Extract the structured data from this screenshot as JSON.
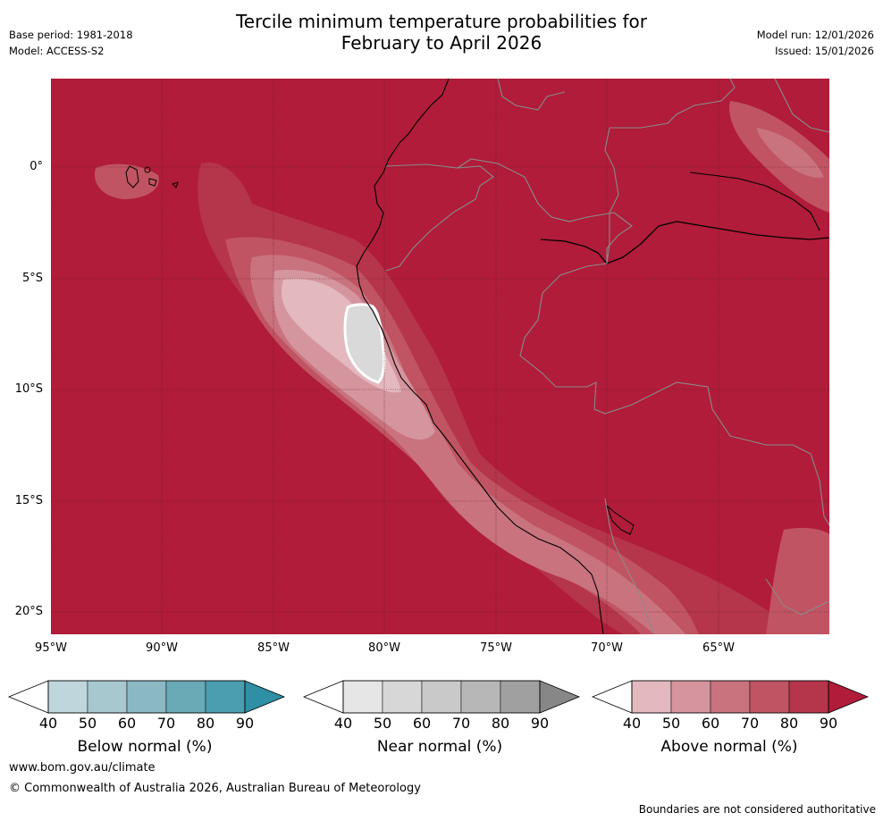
{
  "title": {
    "line1": "Tercile minimum temperature probabilities for",
    "line2": "February to April 2026"
  },
  "meta": {
    "base_period": "Base period: 1981-2018",
    "model": "Model: ACCESS-S2",
    "model_run": "Model run: 12/01/2026",
    "issued": "Issued: 15/01/2026"
  },
  "map": {
    "lat_labels": [
      "0°",
      "5°S",
      "10°S",
      "15°S",
      "20°S"
    ],
    "lon_labels": [
      "95°W",
      "90°W",
      "85°W",
      "80°W",
      "75°W",
      "70°W",
      "65°W"
    ]
  },
  "legends": [
    {
      "label": "Below normal (%)",
      "ticks": [
        "40",
        "50",
        "60",
        "70",
        "80",
        "90"
      ],
      "colors": [
        "#bfd6dc",
        "#a8c8cf",
        "#8ab8c3",
        "#6aa9b6",
        "#4a9eb0",
        "#2e8fa5"
      ]
    },
    {
      "label": "Near normal (%)",
      "ticks": [
        "40",
        "50",
        "60",
        "70",
        "80",
        "90"
      ],
      "colors": [
        "#e6e6e6",
        "#d7d7d7",
        "#c9c9c9",
        "#b7b7b7",
        "#a0a0a0",
        "#878787"
      ]
    },
    {
      "label": "Above normal (%)",
      "ticks": [
        "40",
        "50",
        "60",
        "70",
        "80",
        "90"
      ],
      "colors": [
        "#e3b8bf",
        "#d5959f",
        "#c9737f",
        "#c05463",
        "#b5354a",
        "#b01c3a"
      ]
    }
  ],
  "footer": {
    "url": "www.bom.gov.au/climate",
    "copyright": "© Commonwealth of Australia 2026, Australian Bureau of Meteorology",
    "note": "Boundaries are not considered authoritative"
  }
}
